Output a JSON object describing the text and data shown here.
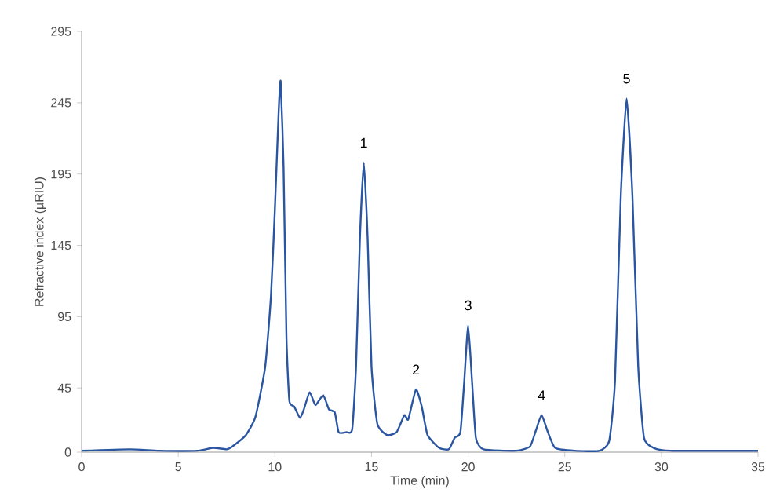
{
  "chart_data": {
    "type": "line",
    "xlabel": "Time (min)",
    "ylabel": "Refractive index (µRIU)",
    "color": "#2a55a0",
    "marker": "none",
    "line_style": "solid",
    "xlim": [
      0,
      35
    ],
    "xticks": [
      0,
      5,
      10,
      15,
      20,
      25,
      30,
      35
    ],
    "ylim": [
      0,
      295
    ],
    "yticks": [
      0,
      45,
      95,
      145,
      195,
      245,
      295
    ],
    "x": [
      0,
      2.5,
      4,
      6,
      6.8,
      7.5,
      7.8,
      8.5,
      9.0,
      9.5,
      9.8,
      10.0,
      10.2,
      10.3,
      10.45,
      10.6,
      10.75,
      11.0,
      11.3,
      11.5,
      11.8,
      12.1,
      12.5,
      12.8,
      13.1,
      13.3,
      13.7,
      14.0,
      14.2,
      14.4,
      14.6,
      14.8,
      15.0,
      15.3,
      15.8,
      16.3,
      16.7,
      16.9,
      17.3,
      17.6,
      17.9,
      18.5,
      19.0,
      19.3,
      19.6,
      19.8,
      20.0,
      20.2,
      20.4,
      20.8,
      22.5,
      23.2,
      23.5,
      23.8,
      24.1,
      24.5,
      25.5,
      26.8,
      27.3,
      27.6,
      27.9,
      28.2,
      28.5,
      28.8,
      29.1,
      29.6,
      30.5,
      35
    ],
    "values": [
      1,
      2,
      1,
      1,
      3,
      2,
      4,
      12,
      25,
      60,
      110,
      170,
      240,
      260,
      200,
      80,
      36,
      32,
      24,
      30,
      42,
      33,
      40,
      30,
      28,
      14,
      14,
      16,
      60,
      150,
      203,
      150,
      60,
      20,
      12,
      14,
      26,
      23,
      44,
      32,
      12,
      3,
      2,
      10,
      14,
      50,
      89,
      50,
      10,
      2,
      1,
      4,
      15,
      26,
      15,
      3,
      1,
      1,
      8,
      50,
      180,
      248,
      180,
      60,
      10,
      3,
      1,
      1
    ],
    "annotations": [
      {
        "text": "1",
        "x": 14.6,
        "y": 203
      },
      {
        "text": "2",
        "x": 17.3,
        "y": 44
      },
      {
        "text": "3",
        "x": 20.0,
        "y": 89
      },
      {
        "text": "4",
        "x": 23.8,
        "y": 26
      },
      {
        "text": "5",
        "x": 28.2,
        "y": 248
      }
    ]
  }
}
